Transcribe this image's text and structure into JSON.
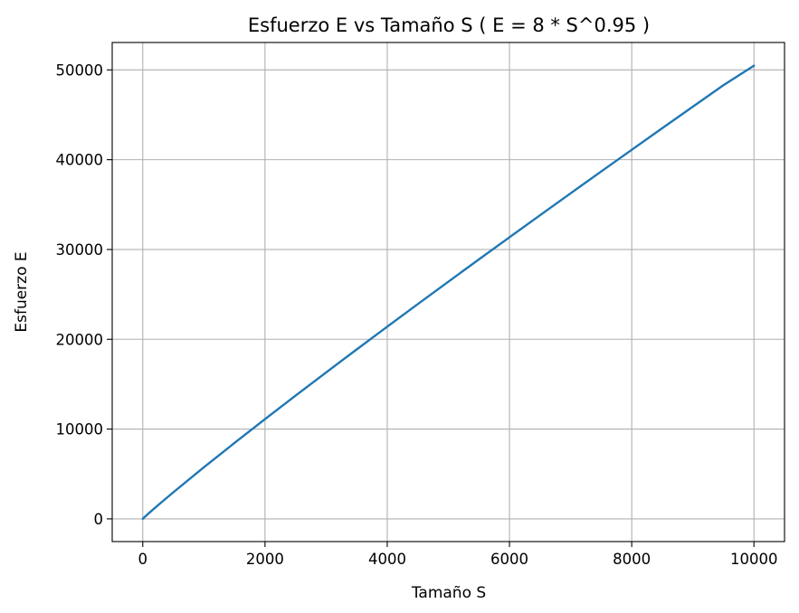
{
  "chart_data": {
    "type": "line",
    "title": "Esfuerzo E vs Tamaño S ( E = 8 * S^0.95 )",
    "xlabel": "Tamaño S",
    "ylabel": "Esfuerzo E",
    "xlim": [
      -500,
      10500
    ],
    "ylim": [
      -2528,
      53052
    ],
    "xticks": [
      0,
      2000,
      4000,
      6000,
      8000,
      10000
    ],
    "xtick_labels": [
      "0",
      "2000",
      "4000",
      "6000",
      "8000",
      "10000"
    ],
    "yticks": [
      0,
      10000,
      20000,
      30000,
      40000,
      50000
    ],
    "ytick_labels": [
      "0",
      "10000",
      "20000",
      "30000",
      "40000",
      "50000"
    ],
    "grid": true,
    "series": [
      {
        "color": "#1f77b4",
        "x": [
          1,
          100,
          250,
          500,
          1000,
          1500,
          2000,
          2500,
          3000,
          3500,
          4000,
          4500,
          5000,
          5500,
          6000,
          6500,
          7000,
          7500,
          8000,
          8500,
          9000,
          9500,
          10000
        ],
        "y": [
          8,
          638,
          1526,
          2962,
          5744,
          8450,
          11107,
          13723,
          16310,
          18868,
          21404,
          23919,
          26417,
          28897,
          31363,
          33815,
          36256,
          38685,
          41101,
          43508,
          45906,
          48293,
          50476
        ]
      }
    ]
  }
}
